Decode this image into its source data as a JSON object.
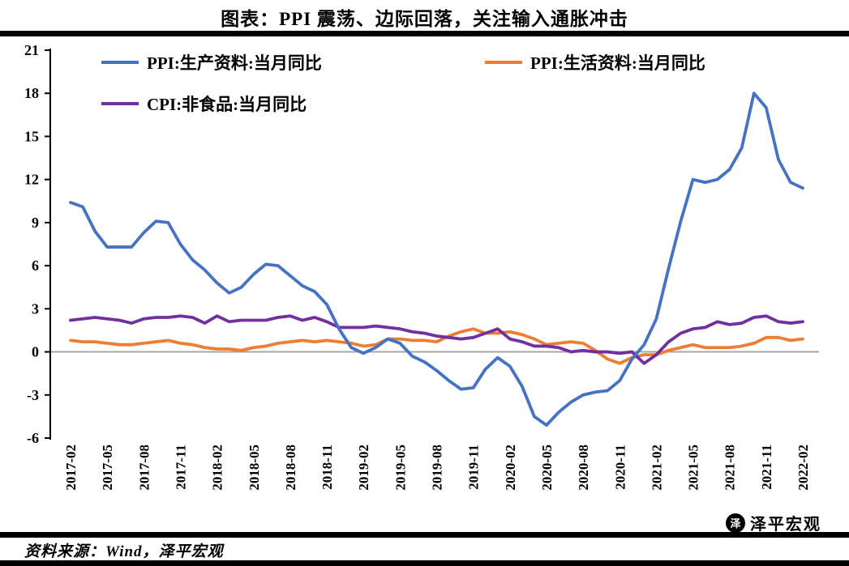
{
  "title": "图表：PPI 震荡、边际回落，关注输入通胀冲击",
  "source": "资料来源：Wind，泽平宏观",
  "watermark": {
    "logo_char": "泽",
    "text": "泽平宏观"
  },
  "chart_data": {
    "type": "line",
    "title": "图表：PPI 震荡、边际回落，关注输入通胀冲击",
    "ylim": [
      -6,
      21
    ],
    "yticks": [
      21,
      18,
      15,
      12,
      9,
      6,
      3,
      0,
      -3,
      -6
    ],
    "x_tick_every": 3,
    "grid": "zero-line-only",
    "zero_line_color": "#A6A6A6",
    "legend_position": "top-inside",
    "x": [
      "2017-02",
      "2017-03",
      "2017-04",
      "2017-05",
      "2017-06",
      "2017-07",
      "2017-08",
      "2017-09",
      "2017-10",
      "2017-11",
      "2017-12",
      "2018-01",
      "2018-02",
      "2018-03",
      "2018-04",
      "2018-05",
      "2018-06",
      "2018-07",
      "2018-08",
      "2018-09",
      "2018-10",
      "2018-11",
      "2018-12",
      "2019-01",
      "2019-02",
      "2019-03",
      "2019-04",
      "2019-05",
      "2019-06",
      "2019-07",
      "2019-08",
      "2019-09",
      "2019-10",
      "2019-11",
      "2019-12",
      "2020-01",
      "2020-02",
      "2020-03",
      "2020-04",
      "2020-05",
      "2020-06",
      "2020-07",
      "2020-08",
      "2020-09",
      "2020-10",
      "2020-11",
      "2020-12",
      "2021-01",
      "2021-02",
      "2021-03",
      "2021-04",
      "2021-05",
      "2021-06",
      "2021-07",
      "2021-08",
      "2021-09",
      "2021-10",
      "2021-11",
      "2021-12",
      "2022-01",
      "2022-02"
    ],
    "x_tick_labels": [
      "2017-02",
      "2017-05",
      "2017-08",
      "2017-11",
      "2018-02",
      "2018-05",
      "2018-08",
      "2018-11",
      "2019-02",
      "2019-05",
      "2019-08",
      "2019-11",
      "2020-02",
      "2020-05",
      "2020-08",
      "2020-11",
      "2021-02",
      "2021-05",
      "2021-08",
      "2021-11",
      "2022-02"
    ],
    "series": [
      {
        "name": "PPI:生产资料:当月同比",
        "color": "#4472C4",
        "values": [
          10.4,
          10.1,
          8.4,
          7.3,
          7.3,
          7.3,
          8.3,
          9.1,
          9.0,
          7.5,
          6.4,
          5.7,
          4.8,
          4.1,
          4.5,
          5.4,
          6.1,
          6.0,
          5.3,
          4.6,
          4.2,
          3.3,
          1.6,
          0.3,
          -0.1,
          0.3,
          0.9,
          0.6,
          -0.3,
          -0.7,
          -1.3,
          -2.0,
          -2.6,
          -2.5,
          -1.2,
          -0.4,
          -1.0,
          -2.4,
          -4.5,
          -5.1,
          -4.2,
          -3.5,
          -3.0,
          -2.8,
          -2.7,
          -2.0,
          -0.5,
          0.5,
          2.3,
          5.8,
          9.1,
          12.0,
          11.8,
          12.0,
          12.7,
          14.2,
          18.0,
          17.0,
          13.4,
          11.8,
          11.4
        ]
      },
      {
        "name": "PPI:生活资料:当月同比",
        "color": "#ED7D31",
        "values": [
          0.8,
          0.7,
          0.7,
          0.6,
          0.5,
          0.5,
          0.6,
          0.7,
          0.8,
          0.6,
          0.5,
          0.3,
          0.2,
          0.2,
          0.1,
          0.3,
          0.4,
          0.6,
          0.7,
          0.8,
          0.7,
          0.8,
          0.7,
          0.6,
          0.4,
          0.5,
          0.9,
          0.9,
          0.8,
          0.8,
          0.7,
          1.1,
          1.4,
          1.6,
          1.3,
          1.3,
          1.4,
          1.2,
          0.9,
          0.5,
          0.6,
          0.7,
          0.6,
          0.1,
          -0.5,
          -0.8,
          -0.4,
          -0.2,
          -0.2,
          0.1,
          0.3,
          0.5,
          0.3,
          0.3,
          0.3,
          0.4,
          0.6,
          1.0,
          1.0,
          0.8,
          0.9
        ]
      },
      {
        "name": "CPI:非食品:当月同比",
        "color": "#7030A0",
        "values": [
          2.2,
          2.3,
          2.4,
          2.3,
          2.2,
          2.0,
          2.3,
          2.4,
          2.4,
          2.5,
          2.4,
          2.0,
          2.5,
          2.1,
          2.2,
          2.2,
          2.2,
          2.4,
          2.5,
          2.2,
          2.4,
          2.1,
          1.7,
          1.7,
          1.7,
          1.8,
          1.7,
          1.6,
          1.4,
          1.3,
          1.1,
          1.0,
          0.9,
          1.0,
          1.3,
          1.6,
          0.9,
          0.7,
          0.4,
          0.4,
          0.3,
          0.0,
          0.1,
          0.0,
          0.0,
          -0.1,
          0.0,
          -0.8,
          -0.2,
          0.7,
          1.3,
          1.6,
          1.7,
          2.1,
          1.9,
          2.0,
          2.4,
          2.5,
          2.1,
          2.0,
          2.1
        ]
      }
    ]
  }
}
